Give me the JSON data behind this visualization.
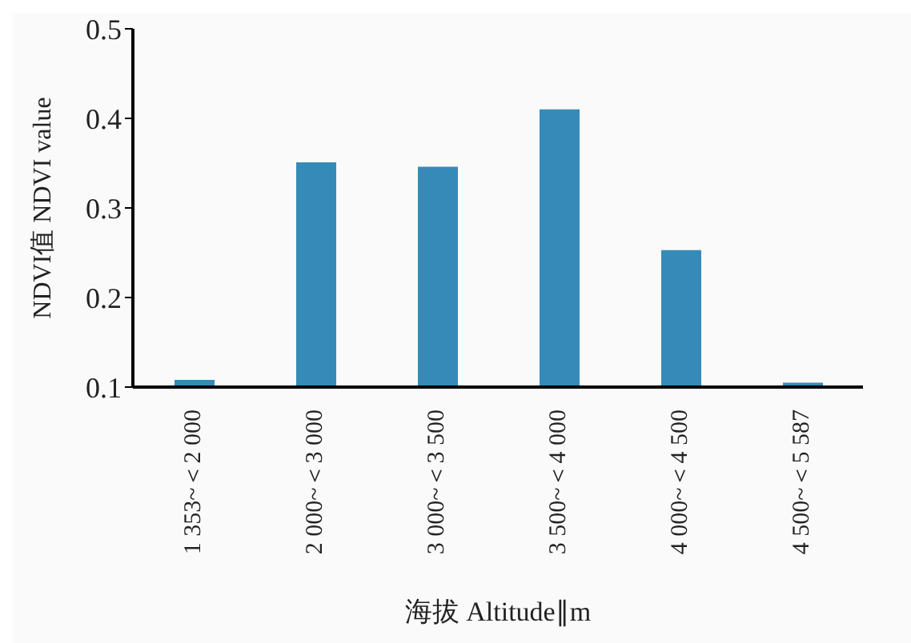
{
  "chart_data": {
    "type": "bar",
    "xlabel": "海拔 Altitude∥m",
    "ylabel": "NDVI值 NDVI value",
    "categories": [
      "1 353~＜2 000",
      "2 000~＜3 000",
      "3 000~＜3 500",
      "3 500~＜4 000",
      "4 000~＜4 500",
      "4 500~＜5 587"
    ],
    "values": [
      0.108,
      0.351,
      0.346,
      0.41,
      0.253,
      0.105
    ],
    "color": "#368ab7",
    "ylim": [
      0.1,
      0.5
    ],
    "yticks": [
      0.1,
      0.2,
      0.3,
      0.4,
      0.5
    ],
    "grid": false,
    "legend": false
  }
}
